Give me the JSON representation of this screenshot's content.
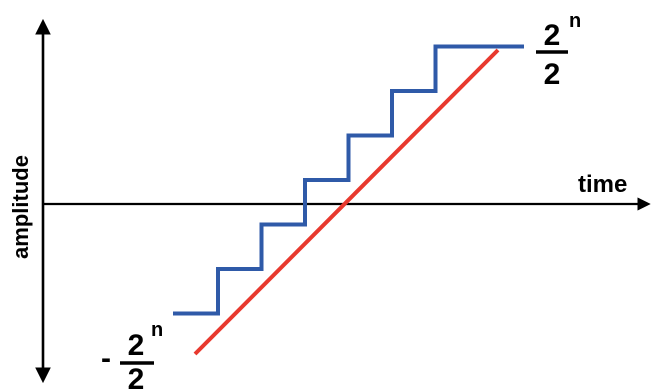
{
  "diagram": {
    "type": "quantization-staircase",
    "labels": {
      "x_axis": "time",
      "y_axis": "amplitude",
      "top_value": {
        "numerator_base": "2",
        "numerator_exponent": "n",
        "denominator": "2"
      },
      "bottom_value": {
        "sign": "-",
        "numerator_base": "2",
        "numerator_exponent": "n",
        "denominator": "2"
      }
    },
    "colors": {
      "axes": "#000000",
      "ramp": "#e8392e",
      "staircase": "#2f5aa8"
    },
    "staircase": {
      "levels": [
        -3,
        -2,
        -1,
        0,
        1,
        2,
        3
      ],
      "dotted_segments": [
        "-2",
        "2"
      ]
    }
  }
}
